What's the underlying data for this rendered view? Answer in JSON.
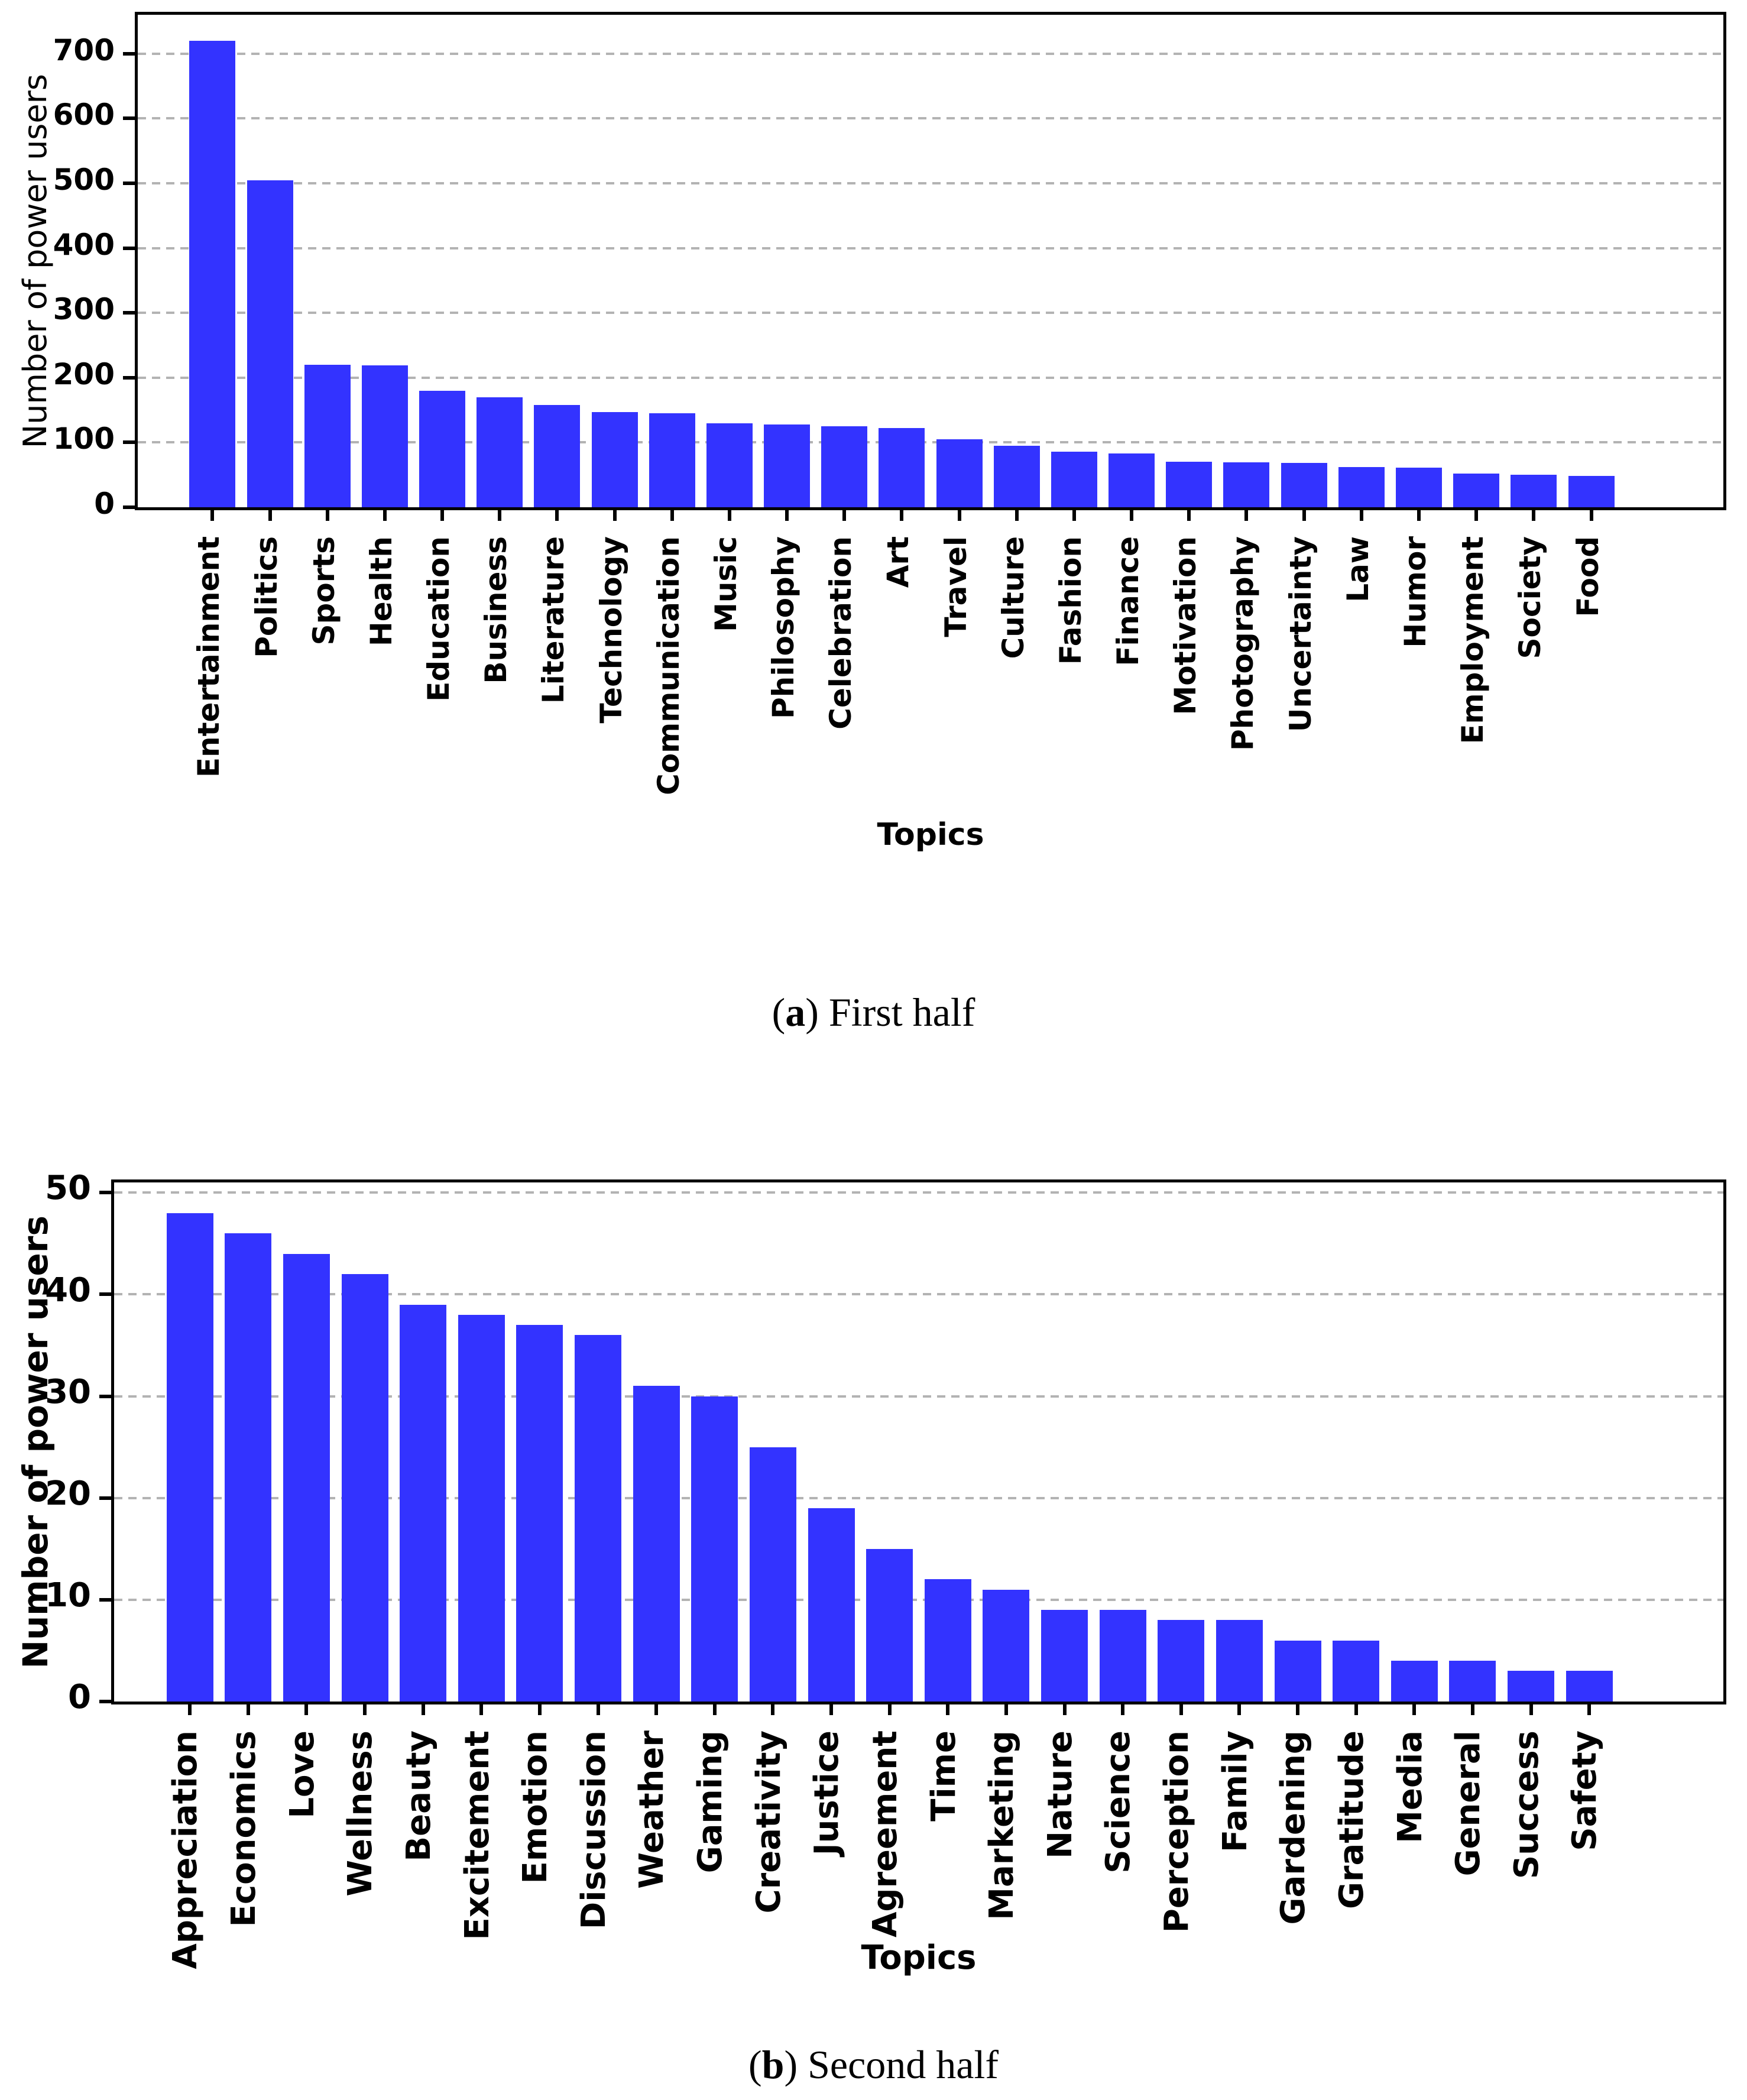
{
  "style": {
    "bar_color": "#3333ff",
    "grid_color": "#b3b3b3",
    "axis_color": "#000000",
    "background": "#ffffff"
  },
  "captions": [
    {
      "open": "(",
      "tag": "a",
      "rest": ") First half"
    },
    {
      "open": "(",
      "tag": "b",
      "rest": ") Second half"
    }
  ],
  "chart_data": [
    {
      "type": "bar",
      "title": "",
      "xlabel": "Topics",
      "ylabel": "Number of power users",
      "ylim": [
        0,
        760
      ],
      "yticks": [
        0,
        100,
        200,
        300,
        400,
        500,
        600,
        700
      ],
      "grid": "horizontal-dashed",
      "legend": "none",
      "bar_color": "#3333ff",
      "categories": [
        "Entertainment",
        "Politics",
        "Sports",
        "Health",
        "Education",
        "Business",
        "Literature",
        "Technology",
        "Communication",
        "Music",
        "Philosophy",
        "Celebration",
        "Art",
        "Travel",
        "Culture",
        "Fashion",
        "Finance",
        "Motivation",
        "Photography",
        "Uncertainty",
        "Law",
        "Humor",
        "Employment",
        "Society",
        "Food"
      ],
      "values": [
        720,
        505,
        220,
        219,
        180,
        170,
        158,
        147,
        145,
        130,
        128,
        125,
        122,
        105,
        95,
        86,
        83,
        70,
        69,
        68,
        62,
        61,
        52,
        50,
        48
      ]
    },
    {
      "type": "bar",
      "title": "",
      "xlabel": "Topics",
      "ylabel": "Number of power users",
      "ylim": [
        0,
        51
      ],
      "yticks": [
        0,
        10,
        20,
        30,
        40,
        50
      ],
      "grid": "horizontal-dashed",
      "legend": "none",
      "bar_color": "#3333ff",
      "categories": [
        "Appreciation",
        "Economics",
        "Love",
        "Wellness",
        "Beauty",
        "Excitement",
        "Emotion",
        "Discussion",
        "Weather",
        "Gaming",
        "Creativity",
        "Justice",
        "Agreement",
        "Time",
        "Marketing",
        "Nature",
        "Science",
        "Perception",
        "Family",
        "Gardening",
        "Gratitude",
        "Media",
        "General",
        "Success",
        "Safety"
      ],
      "values": [
        48,
        46,
        44,
        42,
        39,
        38,
        37,
        36,
        31,
        30,
        25,
        19,
        15,
        12,
        11,
        9,
        9,
        8,
        8,
        6,
        6,
        4,
        4,
        3,
        3
      ]
    }
  ]
}
